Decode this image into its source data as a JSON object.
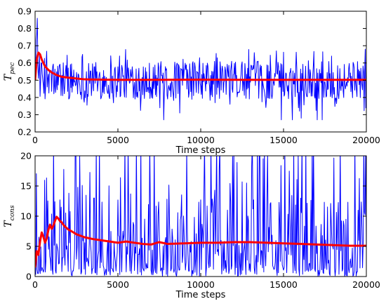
{
  "chart_data": [
    {
      "type": "line",
      "xlabel": "Time steps",
      "ylabel": {
        "main": "T",
        "sub": "pec"
      },
      "xlim": [
        0,
        20000
      ],
      "ylim": [
        0.2,
        0.9
      ],
      "xticks": [
        0,
        5000,
        10000,
        15000,
        20000
      ],
      "yticks": [
        0.2,
        0.3,
        0.4,
        0.5,
        0.6,
        0.7,
        0.8,
        0.9
      ],
      "grid": false,
      "series": [
        {
          "color": "#0000ff",
          "kind": "noisy",
          "mean": 0.5,
          "range_observed": [
            0.27,
            0.89
          ],
          "n_points": 600
        },
        {
          "color": "#ff0000",
          "kind": "smooth",
          "x": [
            0,
            100,
            200,
            300,
            400,
            500,
            600,
            800,
            1000,
            1300,
            1600,
            2000,
            2500,
            3000,
            4000,
            5000,
            7500,
            10000,
            12500,
            15000,
            17500,
            20000
          ],
          "values": [
            0.5,
            0.62,
            0.66,
            0.65,
            0.62,
            0.6,
            0.58,
            0.56,
            0.545,
            0.53,
            0.52,
            0.515,
            0.51,
            0.505,
            0.503,
            0.502,
            0.502,
            0.503,
            0.502,
            0.502,
            0.502,
            0.502
          ]
        }
      ]
    },
    {
      "type": "line",
      "xlabel": "Time steps",
      "ylabel": {
        "main": "T",
        "sub": "cons"
      },
      "xlim": [
        0,
        20000
      ],
      "ylim": [
        0,
        20
      ],
      "xticks": [
        0,
        5000,
        10000,
        15000,
        20000
      ],
      "yticks": [
        0,
        5,
        10,
        15,
        20
      ],
      "grid": false,
      "series": [
        {
          "color": "#0000ff",
          "kind": "spiky",
          "baseline": 2,
          "range_observed": [
            0,
            20
          ],
          "n_points": 520
        },
        {
          "color": "#ff0000",
          "kind": "smooth",
          "x": [
            0,
            100,
            200,
            300,
            400,
            500,
            600,
            700,
            800,
            900,
            1000,
            1100,
            1200,
            1300,
            1400,
            1500,
            1600,
            1700,
            1800,
            2000,
            2200,
            2500,
            3000,
            3500,
            4000,
            4500,
            5000,
            5500,
            6000,
            6500,
            7000,
            7500,
            8000,
            9000,
            10000,
            11000,
            12000,
            13000,
            14000,
            15000,
            16000,
            17000,
            18000,
            19000,
            20000
          ],
          "values": [
            1.5,
            4.2,
            3.6,
            5.8,
            7.3,
            6.6,
            5.6,
            6.3,
            7.7,
            8.6,
            7.9,
            8.4,
            9.2,
            9.9,
            9.6,
            9.2,
            9.0,
            8.6,
            8.3,
            7.8,
            7.5,
            7.0,
            6.5,
            6.2,
            6.0,
            5.8,
            5.6,
            5.8,
            5.6,
            5.4,
            5.3,
            5.7,
            5.4,
            5.5,
            5.6,
            5.6,
            5.7,
            5.7,
            5.6,
            5.5,
            5.4,
            5.3,
            5.2,
            5.1,
            5.1
          ]
        }
      ]
    }
  ]
}
